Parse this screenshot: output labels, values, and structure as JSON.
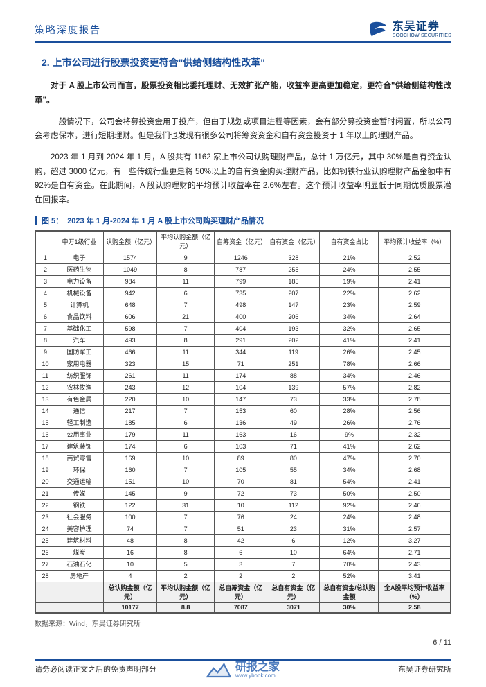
{
  "header": {
    "doc_type": "策略深度报告",
    "logo_cn": "东吴证券",
    "logo_en": "SOOCHOW SECURITIES"
  },
  "section": {
    "number": "2.",
    "title": "上市公司进行股票投资更符合\"供给侧结构性改革\""
  },
  "paragraphs": {
    "p1": "对于 A 股上市公司而言，股票投资相比委托理财、无效扩张产能，收益率更高更加稳定，更符合\"供给侧结构性改革\"。",
    "p2": "一般情况下，公司会将募投资金用于投产，但由于规划或项目进程等因素，会有部分募投资金暂时闲置，所以公司会考虑保本，进行短期理财。但是我们也发现有很多公司将筹资资金和自有资金投资于 1 年以上的理财产品。",
    "p3": "2023 年 1 月到 2024 年 1 月，A 股共有 1162 家上市公司认购理财产品，总计 1 万亿元，其中 30%是自有资金认购，超过 3000 亿元，有一些传统行业更是将 50%以上的自有资金购买理财产品，比如钢铁行业认购理财产品金额中有 92%是自有资金。在此期间，A 股认购理财的平均预计收益率在 2.6%左右。这个预计收益率明显低于同期优质股票潜在回报率。"
  },
  "figure": {
    "label": "图 5：",
    "title": "2023 年 1 月-2024 年 1 月 A 股上市公司购买理财产品情况"
  },
  "table": {
    "columns": [
      "",
      "申万1级行业",
      "认购金额（亿元）",
      "平均认购金额（亿元）",
      "自筹资金（亿元）",
      "自有资金（亿元）",
      "自有资金占比",
      "平均预计收益率（%）"
    ],
    "rows": [
      [
        "1",
        "电子",
        "1574",
        "9",
        "1246",
        "328",
        "21%",
        "2.52"
      ],
      [
        "2",
        "医药生物",
        "1049",
        "8",
        "787",
        "255",
        "24%",
        "2.55"
      ],
      [
        "3",
        "电力设备",
        "984",
        "11",
        "799",
        "185",
        "19%",
        "2.41"
      ],
      [
        "4",
        "机械设备",
        "942",
        "6",
        "735",
        "207",
        "22%",
        "2.62"
      ],
      [
        "5",
        "计算机",
        "648",
        "7",
        "498",
        "147",
        "23%",
        "2.59"
      ],
      [
        "6",
        "食品饮料",
        "606",
        "21",
        "400",
        "206",
        "34%",
        "2.64"
      ],
      [
        "7",
        "基础化工",
        "598",
        "7",
        "404",
        "193",
        "32%",
        "2.65"
      ],
      [
        "8",
        "汽车",
        "493",
        "8",
        "291",
        "202",
        "41%",
        "2.41"
      ],
      [
        "9",
        "国防军工",
        "466",
        "11",
        "344",
        "119",
        "26%",
        "2.45"
      ],
      [
        "10",
        "家用电器",
        "323",
        "15",
        "71",
        "251",
        "78%",
        "2.66"
      ],
      [
        "11",
        "纺织服饰",
        "261",
        "11",
        "174",
        "88",
        "34%",
        "2.46"
      ],
      [
        "12",
        "农林牧渔",
        "243",
        "12",
        "104",
        "139",
        "57%",
        "2.82"
      ],
      [
        "13",
        "有色金属",
        "220",
        "10",
        "147",
        "73",
        "33%",
        "2.78"
      ],
      [
        "14",
        "通信",
        "217",
        "7",
        "153",
        "60",
        "28%",
        "2.56"
      ],
      [
        "15",
        "轻工制造",
        "185",
        "6",
        "136",
        "49",
        "26%",
        "2.76"
      ],
      [
        "16",
        "公用事业",
        "179",
        "11",
        "163",
        "16",
        "9%",
        "2.32"
      ],
      [
        "17",
        "建筑装饰",
        "174",
        "6",
        "103",
        "71",
        "41%",
        "2.62"
      ],
      [
        "18",
        "商贸零售",
        "169",
        "10",
        "89",
        "80",
        "47%",
        "2.70"
      ],
      [
        "19",
        "环保",
        "160",
        "7",
        "105",
        "55",
        "34%",
        "2.68"
      ],
      [
        "20",
        "交通运输",
        "151",
        "10",
        "70",
        "81",
        "54%",
        "2.41"
      ],
      [
        "21",
        "传媒",
        "145",
        "9",
        "72",
        "73",
        "50%",
        "2.50"
      ],
      [
        "22",
        "钢铁",
        "122",
        "31",
        "10",
        "112",
        "92%",
        "2.46"
      ],
      [
        "23",
        "社会服务",
        "100",
        "7",
        "76",
        "24",
        "24%",
        "2.48"
      ],
      [
        "24",
        "美容护理",
        "74",
        "7",
        "51",
        "23",
        "31%",
        "2.57"
      ],
      [
        "25",
        "建筑材料",
        "48",
        "8",
        "42",
        "6",
        "12%",
        "3.27"
      ],
      [
        "26",
        "煤炭",
        "16",
        "8",
        "6",
        "10",
        "64%",
        "2.71"
      ],
      [
        "27",
        "石油石化",
        "10",
        "5",
        "3",
        "7",
        "70%",
        "2.43"
      ],
      [
        "28",
        "房地产",
        "4",
        "2",
        "2",
        "2",
        "52%",
        "3.41"
      ]
    ],
    "summary1_labels": [
      "",
      "",
      "总认购金额（亿元）",
      "平均认购金额（亿元）",
      "总自筹资金（亿元）",
      "总自有资金（亿元）",
      "总自有资金/总认购金额",
      "全A股平均预计收益率（%）"
    ],
    "summary2_values": [
      "",
      "",
      "10177",
      "8.8",
      "7087",
      "3071",
      "30%",
      "2.58"
    ]
  },
  "data_source": "数据来源：Wind，东吴证券研究所",
  "footer": {
    "disclaimer": "请务必阅读正文之后的免责声明部分",
    "org": "东吴证券研究所",
    "page_current": "6",
    "page_total": "11"
  },
  "watermark": {
    "cn": "研报之家",
    "en": "www.ybook.com"
  },
  "colors": {
    "brand": "#1a4f9c",
    "text": "#222222",
    "border": "#555555",
    "summary_bg": "#f0f0f0"
  }
}
